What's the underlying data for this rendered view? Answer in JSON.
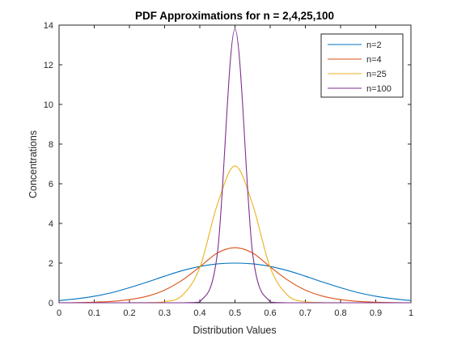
{
  "chart_data": {
    "type": "line",
    "title": "PDF Approximations for n = 2,4,25,100",
    "xlabel": "Distribution Values",
    "ylabel": "Concentrations",
    "xlim": [
      0,
      1
    ],
    "ylim": [
      0,
      14
    ],
    "xticks": [
      "0",
      "0.1",
      "0.2",
      "0.3",
      "0.4",
      "0.5",
      "0.6",
      "0.7",
      "0.8",
      "0.9",
      "1"
    ],
    "yticks": [
      "0",
      "2",
      "4",
      "6",
      "8",
      "10",
      "12",
      "14"
    ],
    "grid": false,
    "legend_position": "top-right",
    "x": [
      0,
      0.05,
      0.1,
      0.15,
      0.2,
      0.25,
      0.3,
      0.35,
      0.4,
      0.45,
      0.5,
      0.55,
      0.6,
      0.65,
      0.7,
      0.75,
      0.8,
      0.85,
      0.9,
      0.95,
      1
    ],
    "series": [
      {
        "name": "n=2",
        "color": "#0072BD",
        "values": [
          0.11,
          0.2,
          0.33,
          0.51,
          0.76,
          1.04,
          1.34,
          1.62,
          1.83,
          1.96,
          2.0,
          1.96,
          1.83,
          1.62,
          1.34,
          1.04,
          0.76,
          0.51,
          0.33,
          0.2,
          0.11
        ]
      },
      {
        "name": "n=4",
        "color": "#D95319",
        "values": [
          0.0,
          0.01,
          0.03,
          0.07,
          0.16,
          0.33,
          0.64,
          1.14,
          1.81,
          2.51,
          2.78,
          2.51,
          1.81,
          1.14,
          0.64,
          0.33,
          0.16,
          0.07,
          0.03,
          0.01,
          0.0
        ]
      },
      {
        "name": "n=25",
        "color": "#EDB120",
        "values": [
          0.0,
          0.0,
          0.0,
          0.0,
          0.0,
          0.01,
          0.05,
          0.37,
          1.78,
          4.96,
          6.9,
          4.96,
          1.78,
          0.37,
          0.05,
          0.01,
          0.0,
          0.0,
          0.0,
          0.0,
          0.0
        ]
      },
      {
        "name": "n=100",
        "color": "#7E2F8E",
        "values": [
          0.0,
          0.0,
          0.0,
          0.0,
          0.0,
          0.0,
          0.0,
          0.0,
          0.04,
          2.5,
          13.8,
          2.5,
          0.04,
          0.0,
          0.0,
          0.0,
          0.0,
          0.0,
          0.0,
          0.0,
          0.0
        ]
      }
    ]
  }
}
